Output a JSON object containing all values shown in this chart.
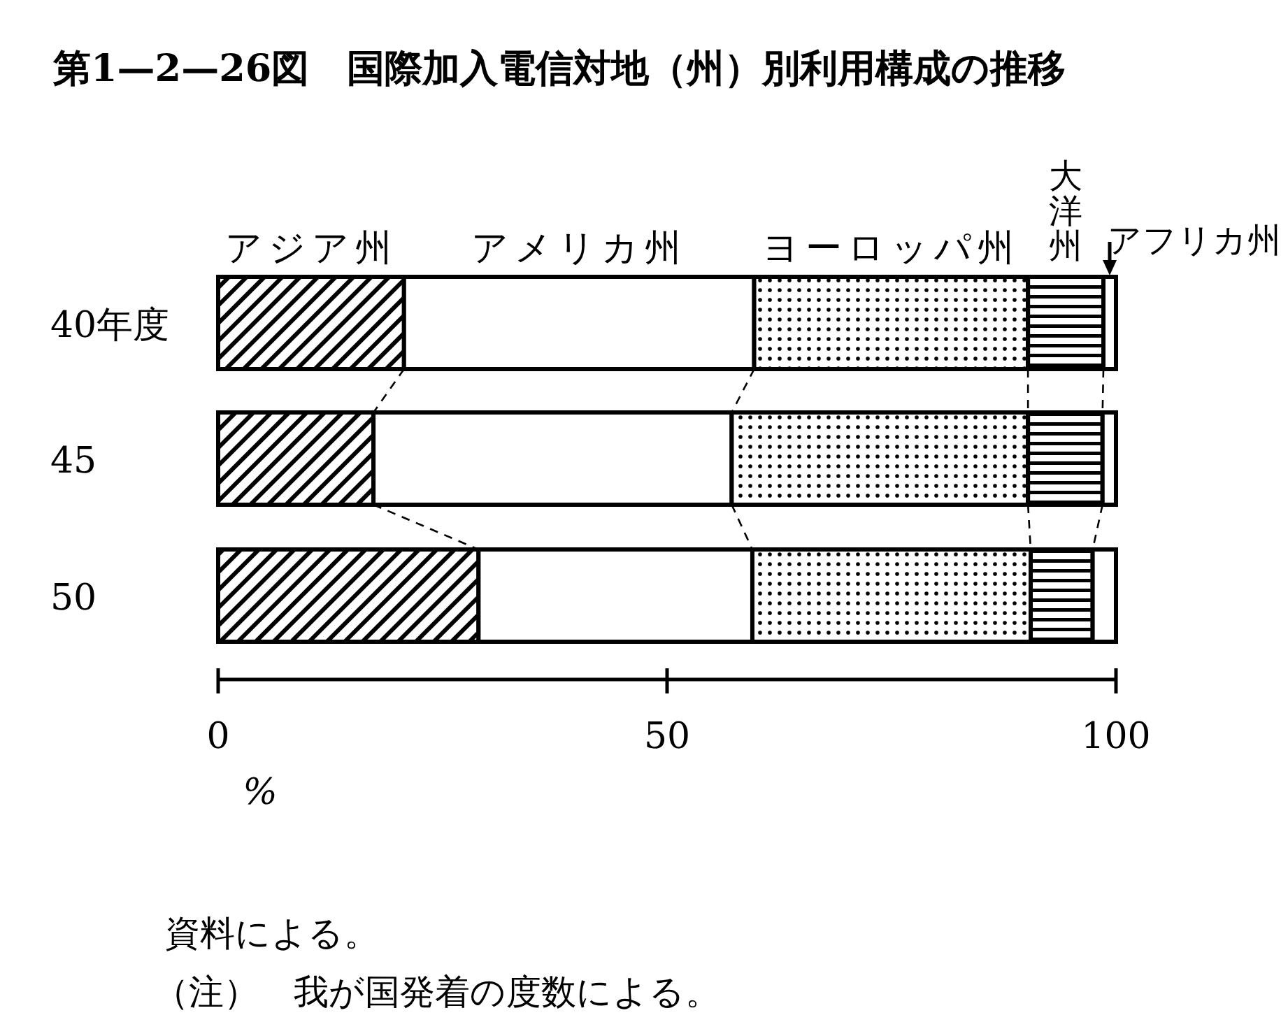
{
  "chart_data": {
    "type": "bar",
    "orientation": "horizontal",
    "stacked": true,
    "title": "第1—2—26図　国際加入電信対地（州）別利用構成の推移",
    "xlabel": "%",
    "categories": [
      "40年度",
      "45",
      "50"
    ],
    "series": [
      {
        "name": "アジア州",
        "color": "#000000",
        "values": [
          20.7,
          17.3,
          29.0
        ]
      },
      {
        "name": "アメリカ州",
        "color": "#ffffff",
        "values": [
          39.0,
          39.9,
          30.5
        ]
      },
      {
        "name": "ヨーロッパ州",
        "color": "#000000",
        "values": [
          30.5,
          33.0,
          31.0
        ]
      },
      {
        "name": "大洋州",
        "color": "#000000",
        "values": [
          8.4,
          8.3,
          6.9
        ]
      },
      {
        "name": "アフリカ州",
        "color": "#ffffff",
        "values": [
          1.4,
          1.5,
          2.6
        ]
      }
    ],
    "xlim": [
      0,
      100
    ],
    "xticks": [
      0,
      50,
      100
    ],
    "grid": false,
    "annotations": [
      "資料による。",
      "（注）　我が国発着の度数による。"
    ]
  }
}
